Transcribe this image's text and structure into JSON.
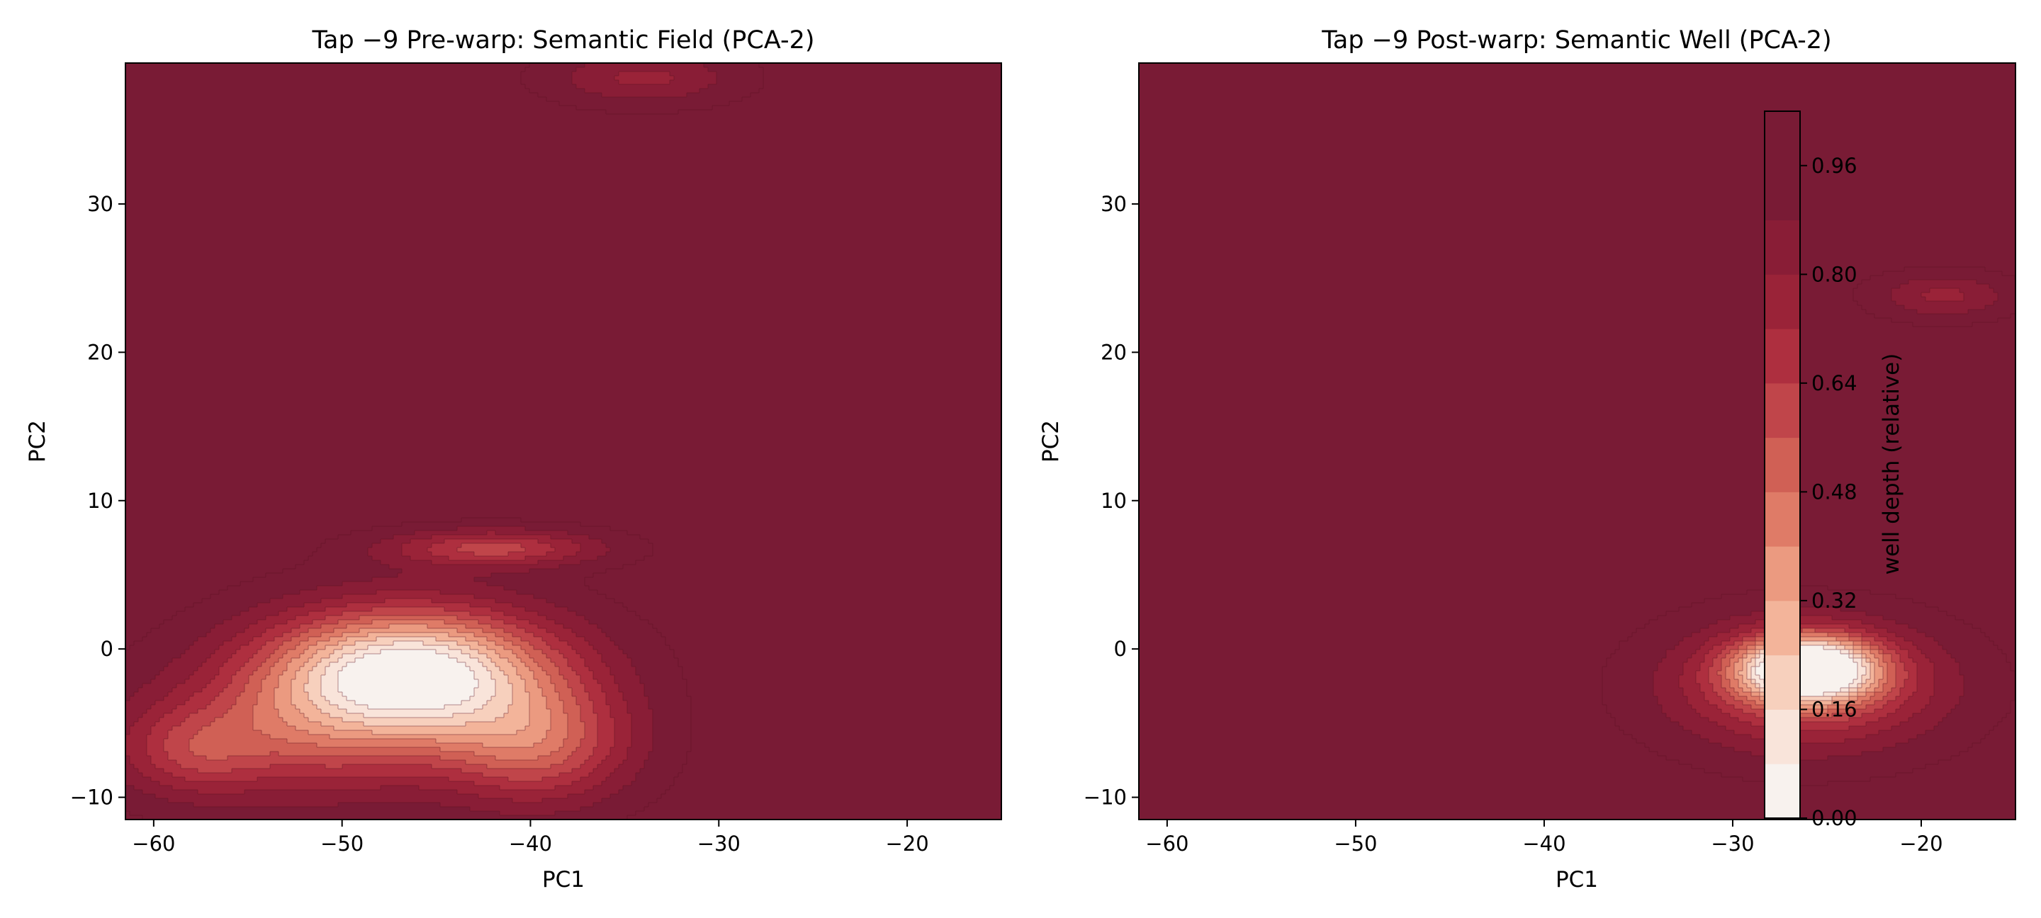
{
  "chart_data": [
    {
      "type": "contour",
      "title": "Tap −9 Pre-warp: Semantic Field (PCA-2)",
      "xlabel": "PC1",
      "ylabel": "PC2",
      "xlim": [
        -61.5,
        -15
      ],
      "ylim": [
        -11.5,
        39.5
      ],
      "xticks": [
        -60,
        -50,
        -40,
        -30,
        -20
      ],
      "yticks": [
        -10,
        0,
        10,
        20,
        30
      ],
      "xtick_labels": [
        "−60",
        "−50",
        "−40",
        "−30",
        "−20"
      ],
      "ytick_labels": [
        "−10",
        "0",
        "10",
        "20",
        "30"
      ],
      "grid": false,
      "wells": [
        {
          "x": -46.5,
          "y": -1.5,
          "sx": 5.5,
          "sy": 3.0,
          "depth": 1.0
        },
        {
          "x": -42.0,
          "y": 6.8,
          "sx": 4.0,
          "sy": 0.9,
          "depth": 0.38
        },
        {
          "x": -52.0,
          "y": -6.0,
          "sx": 6.5,
          "sy": 3.0,
          "depth": 0.35
        },
        {
          "x": -39.5,
          "y": -6.5,
          "sx": 3.5,
          "sy": 2.8,
          "depth": 0.42
        },
        {
          "x": -58.0,
          "y": -7.0,
          "sx": 2.5,
          "sy": 2.0,
          "depth": 0.2
        },
        {
          "x": -34.0,
          "y": 38.5,
          "sx": 3.5,
          "sy": 1.3,
          "depth": 0.22
        }
      ]
    },
    {
      "type": "contour",
      "title": "Tap −9 Post-warp: Semantic Well (PCA-2)",
      "xlabel": "PC1",
      "ylabel": "PC2",
      "xlim": [
        -61.5,
        -15
      ],
      "ylim": [
        -11.5,
        39.5
      ],
      "xticks": [
        -60,
        -50,
        -40,
        -30,
        -20
      ],
      "yticks": [
        -10,
        0,
        10,
        20,
        30
      ],
      "xtick_labels": [
        "−60",
        "−50",
        "−40",
        "−30",
        "−20"
      ],
      "ytick_labels": [
        "−10",
        "0",
        "10",
        "20",
        "30"
      ],
      "grid": false,
      "wells": [
        {
          "x": -26.0,
          "y": -1.3,
          "sx": 2.5,
          "sy": 1.5,
          "depth": 1.0
        },
        {
          "x": -26.0,
          "y": -2.5,
          "sx": 5.0,
          "sy": 3.0,
          "depth": 0.45
        },
        {
          "x": -18.8,
          "y": 23.8,
          "sx": 2.6,
          "sy": 1.1,
          "depth": 0.22
        }
      ],
      "colorbar": {
        "label": "well depth (relative)",
        "levels": [
          0.0,
          0.08,
          0.16,
          0.24,
          0.32,
          0.4,
          0.48,
          0.56,
          0.64,
          0.72,
          0.8,
          0.88,
          0.96,
          1.04
        ],
        "ticks": [
          0.0,
          0.16,
          0.32,
          0.48,
          0.64,
          0.8,
          0.96
        ],
        "tick_labels": [
          "0.00",
          "0.16",
          "0.32",
          "0.48",
          "0.64",
          "0.80",
          "0.96"
        ]
      }
    }
  ],
  "colors": {
    "band_colors": [
      "#f8f2ee",
      "#f9e4da",
      "#f7d0bd",
      "#f3b49a",
      "#eb9a80",
      "#df7b67",
      "#d06055",
      "#c0454a",
      "#ae2f3f",
      "#9a2338",
      "#891d36",
      "#791b35",
      "#791b35"
    ],
    "contour_line": "#5a1020"
  }
}
